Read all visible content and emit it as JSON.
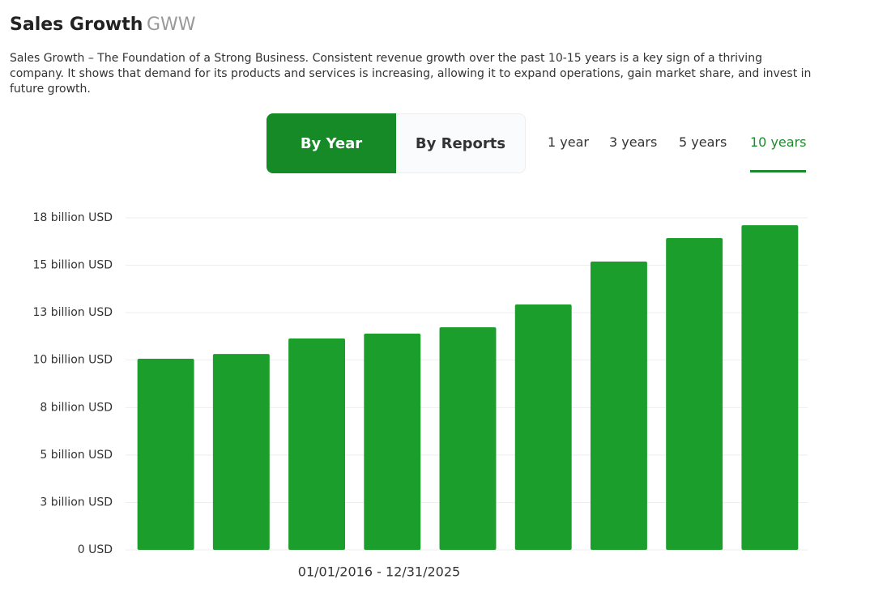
{
  "header": {
    "title": "Sales Growth",
    "ticker": "GWW",
    "description": "Sales Growth – The Foundation of a Strong Business. Consistent revenue growth over the past 10-15 years is a key sign of a thriving company. It shows that demand for its products and services is increasing, allowing it to expand operations, gain market share, and invest in future growth."
  },
  "tabs": [
    "By Year",
    "By Reports"
  ],
  "periods": [
    "1 year",
    "3 years",
    "5 years",
    "10 years"
  ],
  "chart_data": {
    "type": "bar",
    "x_label": "01/01/2016 - 12/31/2025",
    "categories": [
      null,
      null,
      null,
      null,
      null,
      null,
      null,
      null,
      null
    ],
    "values": [
      10.36,
      10.62,
      11.46,
      11.72,
      12.07,
      13.3,
      15.63,
      16.9,
      17.6
    ],
    "color": "#1c9e2c",
    "ylim": [
      0,
      18
    ],
    "yticks": [
      {
        "value": 0,
        "label": "0 USD"
      },
      {
        "value": 2.57,
        "label": "3 billion USD"
      },
      {
        "value": 5.14,
        "label": "5 billion USD"
      },
      {
        "value": 7.71,
        "label": "8 billion USD"
      },
      {
        "value": 10.29,
        "label": "10 billion USD"
      },
      {
        "value": 12.86,
        "label": "13 billion USD"
      },
      {
        "value": 15.43,
        "label": "15 billion USD"
      },
      {
        "value": 18,
        "label": "18 billion USD"
      }
    ],
    "grid": true
  }
}
